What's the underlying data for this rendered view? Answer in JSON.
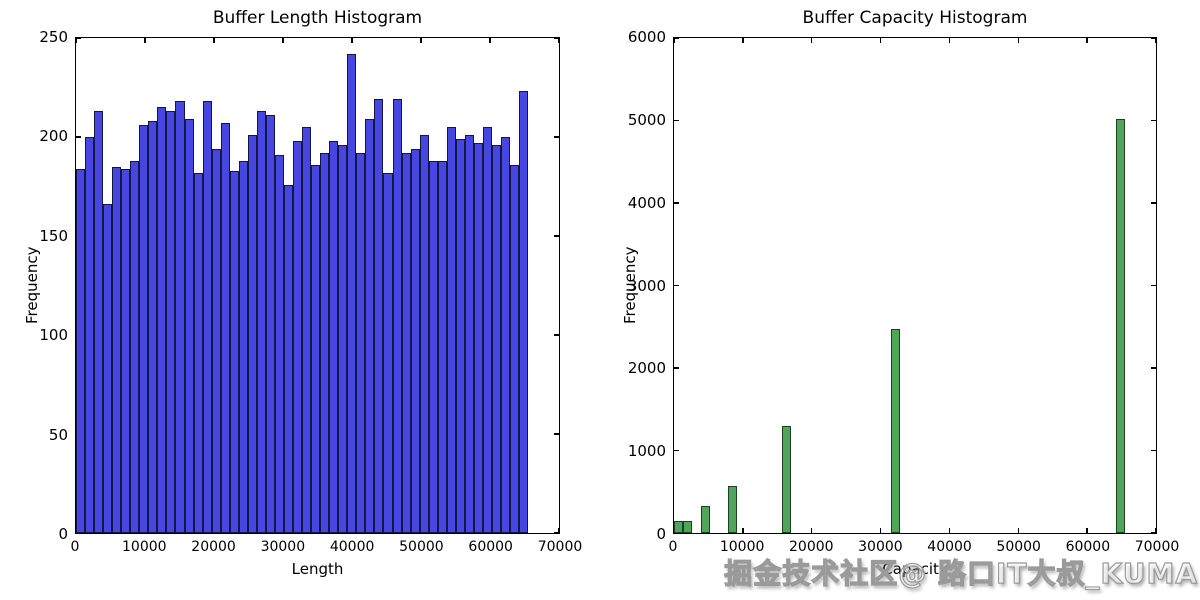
{
  "figure": {
    "background": "#ffffff"
  },
  "watermark": {
    "text": "掘金技术社区@ 路口IT大叔_KUMA"
  },
  "chart_data": [
    {
      "type": "bar",
      "title": "Buffer Length Histogram",
      "xlabel": "Length",
      "ylabel": "Frequency",
      "xlim": [
        0,
        70000
      ],
      "ylim": [
        0,
        250
      ],
      "xticks": [
        0,
        10000,
        20000,
        30000,
        40000,
        50000,
        60000,
        70000
      ],
      "yticks": [
        0,
        50,
        100,
        150,
        200,
        250
      ],
      "grid": false,
      "legend_position": "none",
      "bar_color": "#4646e0",
      "bar_edge": "#161645",
      "bin_width": 1311,
      "bars": {
        "x": [
          0,
          1311,
          2621,
          3932,
          5243,
          6554,
          7864,
          9175,
          10486,
          11796,
          13107,
          14418,
          15729,
          17039,
          18350,
          19661,
          20972,
          22282,
          23593,
          24904,
          26214,
          27525,
          28836,
          30147,
          31457,
          32768,
          34079,
          35389,
          36700,
          38011,
          39322,
          40632,
          41943,
          43254,
          44564,
          45875,
          47186,
          48497,
          49807,
          51118,
          52429,
          53739,
          55050,
          56361,
          57672,
          58982,
          60293,
          61604,
          62914,
          64225
        ],
        "values": [
          184,
          200,
          213,
          166,
          185,
          184,
          188,
          206,
          208,
          215,
          213,
          218,
          209,
          182,
          218,
          194,
          207,
          183,
          188,
          201,
          213,
          211,
          191,
          176,
          198,
          205,
          186,
          192,
          198,
          196,
          242,
          192,
          209,
          219,
          182,
          219,
          192,
          194,
          201,
          188,
          188,
          205,
          199,
          201,
          197,
          205,
          196,
          200,
          186,
          223
        ]
      }
    },
    {
      "type": "bar",
      "title": "Buffer Capacity Histogram",
      "xlabel": "Capacity",
      "ylabel": "Frequency",
      "xlim": [
        0,
        70000
      ],
      "ylim": [
        0,
        6000
      ],
      "xticks": [
        0,
        10000,
        20000,
        30000,
        40000,
        50000,
        60000,
        70000
      ],
      "yticks": [
        0,
        1000,
        2000,
        3000,
        4000,
        5000,
        6000
      ],
      "grid": false,
      "legend_position": "none",
      "bar_color": "#4fa65a",
      "bar_edge": "#1e4023",
      "bin_width": 1311,
      "bars": {
        "x": [
          0,
          1311,
          3932,
          7864,
          15729,
          31457,
          64225
        ],
        "values": [
          150,
          140,
          325,
          570,
          1300,
          2470,
          5020
        ]
      }
    }
  ]
}
